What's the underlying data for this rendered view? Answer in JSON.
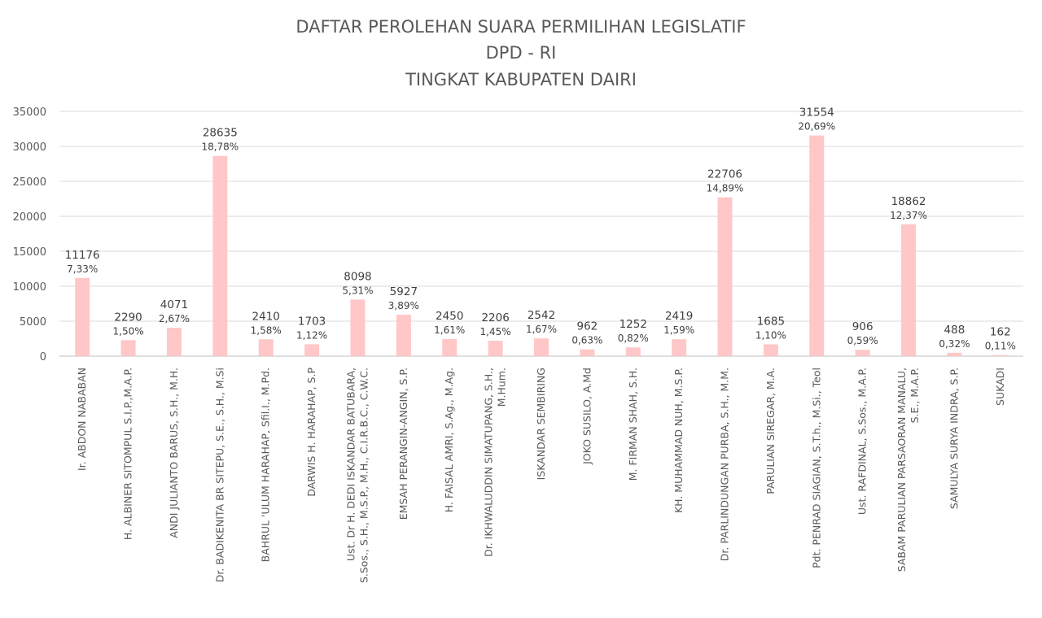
{
  "chart_data": {
    "type": "bar",
    "title": [
      "DAFTAR PEROLEHAN SUARA PERMILIHAN LEGISLATIF",
      "DPD - RI",
      "TINGKAT KABUPATEN DAIRI"
    ],
    "xlabel": "",
    "ylabel": "",
    "ylim": [
      0,
      35000
    ],
    "yticks": [
      0,
      5000,
      10000,
      15000,
      20000,
      25000,
      30000,
      35000
    ],
    "grid": true,
    "bar_color": "#ffc7c7",
    "categories": [
      [
        "Ir. ABDON NABABAN"
      ],
      [
        "H. ALBINER SITOMPUL S.I.P.,M.A.P."
      ],
      [
        "ANDI JULIANTO BARUS, S.H., M.H."
      ],
      [
        "Dr. BADIKENITA BR SITEPU, S.E., S.H., M.Si"
      ],
      [
        "BAHRUL 'ULUM HARAHAP, Sfil.I., M.Pd."
      ],
      [
        "DARWIS H. HARAHAP, S.P"
      ],
      [
        "Ust. Dr H. DEDI ISKANDAR BATUBARA,",
        "S.Sos., S.H., M.S.P., M.H., C.I.R.B.C., C.W.C."
      ],
      [
        "EMSAH PERANGIN-ANGIN, S.P."
      ],
      [
        "H. FAISAL AMRI, S.Ag., M.Ag."
      ],
      [
        "Dr. IKHWALUDDIN SIMATUPANG, S.H.,",
        "M.Hum."
      ],
      [
        "ISKANDAR SEMBIRING"
      ],
      [
        "JOKO SUSILO, A.Md"
      ],
      [
        "M. FIRMAN SHAH, S.H."
      ],
      [
        "KH. MUHAMMAD NUH, M.S.P."
      ],
      [
        "Dr. PARLINDUNGAN PURBA, S.H., M.M."
      ],
      [
        "PARULIAN SIREGAR, M.A."
      ],
      [
        "Pdt. PENRAD SIAGIAN, S.T.h., M.Si., Teol"
      ],
      [
        "Ust. RAFDINAL, S.Sos., M.A.P."
      ],
      [
        "SABAM PARULIAN PARSAORAN MANALU,",
        "S.E., M.A.P."
      ],
      [
        "SAMULYA SURYA INDRA, S.P."
      ],
      [
        "SUKADI"
      ]
    ],
    "values": [
      11176,
      2290,
      4071,
      28635,
      2410,
      1703,
      8098,
      5927,
      2450,
      2206,
      2542,
      962,
      1252,
      2419,
      22706,
      1685,
      31554,
      906,
      18862,
      488,
      162
    ],
    "percent_labels": [
      "7,33%",
      "1,50%",
      "2,67%",
      "18,78%",
      "1,58%",
      "1,12%",
      "5,31%",
      "3,89%",
      "1,61%",
      "1,45%",
      "1,67%",
      "0,63%",
      "0,82%",
      "1,59%",
      "14,89%",
      "1,10%",
      "20,69%",
      "0,59%",
      "12,37%",
      "0,32%",
      "0,11%"
    ]
  }
}
